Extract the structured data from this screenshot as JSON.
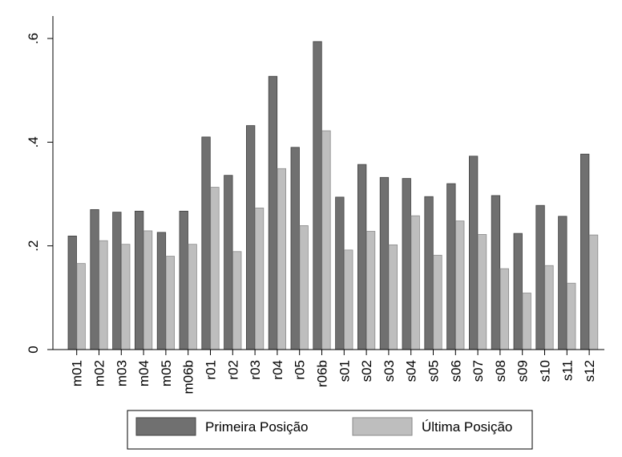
{
  "chart_data": {
    "type": "bar",
    "categories": [
      "m01",
      "m02",
      "m03",
      "m04",
      "m05",
      "m06b",
      "r01",
      "r02",
      "r03",
      "r04",
      "r05",
      "r06b",
      "s01",
      "s02",
      "s03",
      "s04",
      "s05",
      "s06",
      "s07",
      "s08",
      "s09",
      "s10",
      "s11",
      "s12"
    ],
    "series": [
      {
        "name": "Primeira Posição",
        "color": "#707070",
        "values": [
          0.219,
          0.27,
          0.265,
          0.267,
          0.226,
          0.267,
          0.41,
          0.336,
          0.432,
          0.527,
          0.39,
          0.594,
          0.294,
          0.357,
          0.332,
          0.33,
          0.295,
          0.32,
          0.373,
          0.297,
          0.224,
          0.278,
          0.257,
          0.377
        ]
      },
      {
        "name": "Última Posição",
        "color": "#bebebe",
        "values": [
          0.166,
          0.21,
          0.203,
          0.229,
          0.18,
          0.203,
          0.313,
          0.189,
          0.273,
          0.349,
          0.239,
          0.422,
          0.192,
          0.228,
          0.202,
          0.258,
          0.182,
          0.248,
          0.222,
          0.156,
          0.109,
          0.162,
          0.128,
          0.221
        ]
      }
    ],
    "yticks": [
      0,
      0.2,
      0.4,
      0.6
    ],
    "ytick_labels": [
      "0",
      ".2",
      ".4",
      ".6"
    ],
    "ylim": [
      0,
      0.6
    ],
    "grid": false,
    "legend_position": "bottom"
  }
}
